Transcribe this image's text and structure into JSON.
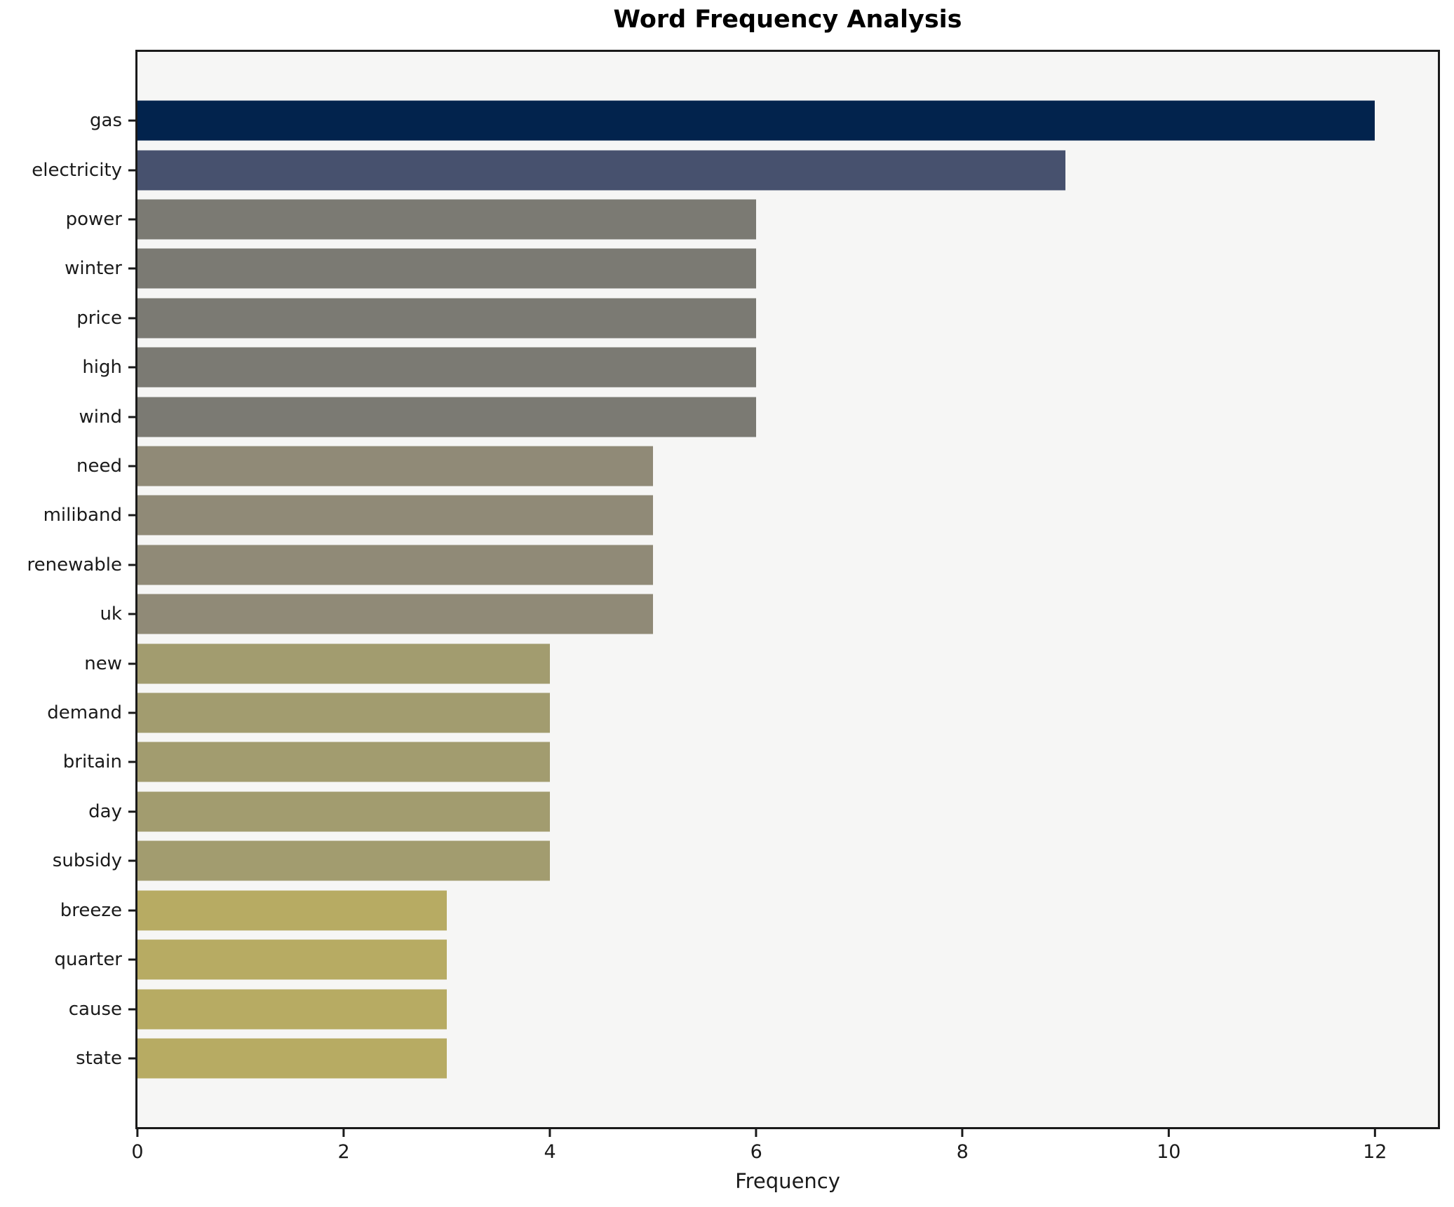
{
  "chart_data": {
    "type": "bar",
    "orientation": "horizontal",
    "title": "Word Frequency Analysis",
    "xlabel": "Frequency",
    "ylabel": "",
    "categories": [
      "gas",
      "electricity",
      "power",
      "winter",
      "price",
      "high",
      "wind",
      "need",
      "miliband",
      "renewable",
      "uk",
      "new",
      "demand",
      "britain",
      "day",
      "subsidy",
      "breeze",
      "quarter",
      "cause",
      "state"
    ],
    "values": [
      12,
      9,
      6,
      6,
      6,
      6,
      6,
      5,
      5,
      5,
      5,
      4,
      4,
      4,
      4,
      4,
      3,
      3,
      3,
      3
    ],
    "bar_colors": [
      "#02234d",
      "#47516e",
      "#7b7a73",
      "#7b7a73",
      "#7b7a73",
      "#7b7a73",
      "#7b7a73",
      "#908a77",
      "#908a77",
      "#908a77",
      "#908a77",
      "#a29c6f",
      "#a29c6f",
      "#a29c6f",
      "#a29c6f",
      "#a29c6f",
      "#b7ab63",
      "#b7ab63",
      "#b7ab63",
      "#b7ab63"
    ],
    "xticks": [
      0,
      2,
      4,
      6,
      8,
      10,
      12
    ],
    "xlim": [
      0,
      12.61
    ],
    "grid": false,
    "legend": null,
    "plot_background": "#f6f6f5",
    "figure_background": "#ffffff"
  }
}
